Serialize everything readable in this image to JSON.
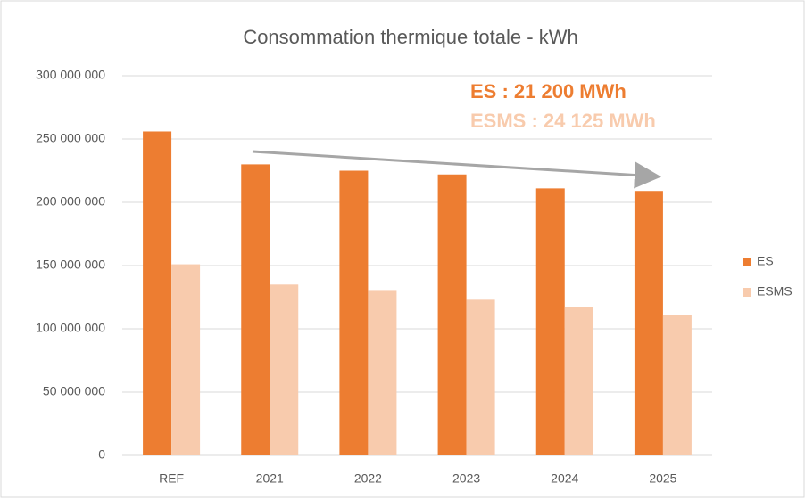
{
  "chart_data": {
    "type": "bar",
    "title": "Consommation thermique totale - kWh",
    "categories": [
      "REF",
      "2021",
      "2022",
      "2023",
      "2024",
      "2025"
    ],
    "series": [
      {
        "name": "ES",
        "color": "#ed7d31",
        "values": [
          256000000,
          230000000,
          225000000,
          222000000,
          211000000,
          209000000
        ]
      },
      {
        "name": "ESMS",
        "color": "#f8cbad",
        "values": [
          151000000,
          135000000,
          130000000,
          123000000,
          117000000,
          111000000
        ]
      }
    ],
    "ylim": [
      0,
      300000000
    ],
    "yticks": [
      0,
      {
        "value": 50000000,
        "label": "50 000 000"
      },
      {
        "value": 100000000,
        "label": "100 000 000"
      },
      {
        "value": 150000000,
        "label": "150 000 000"
      },
      {
        "value": 200000000,
        "label": "200 000 000"
      },
      {
        "value": 250000000,
        "label": "250 000 000"
      },
      {
        "value": 300000000,
        "label": "300 000 000"
      }
    ],
    "grid": true,
    "legend": "right",
    "annotations": [
      {
        "text": "ES : 21 200 MWh",
        "color": "#ed7d31"
      },
      {
        "text": "ESMS : 24 125 MWh",
        "color": "#f8cbad"
      }
    ]
  }
}
